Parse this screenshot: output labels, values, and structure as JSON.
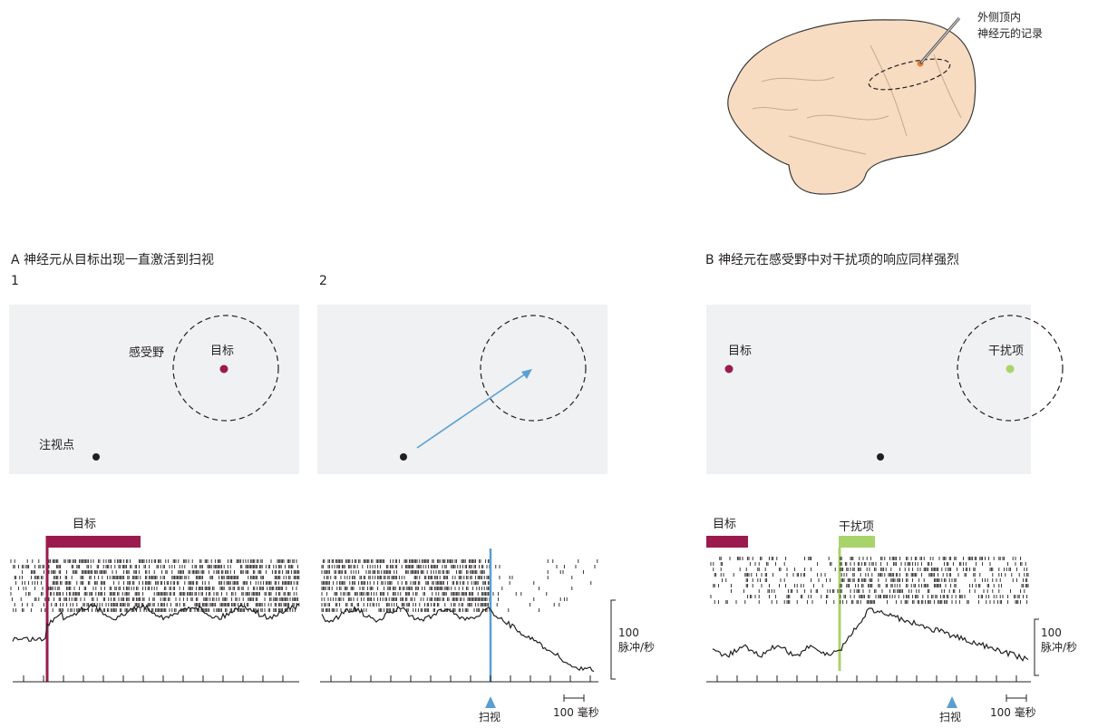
{
  "brain": {
    "label_line1": "外侧顶内",
    "label_line2": "神经元的记录"
  },
  "panel_a": {
    "title": "A  神经元从目标出现一直激活到扫视",
    "sub1": {
      "number": "1",
      "rf_label": "感受野",
      "target_label": "目标",
      "fixation_label": "注视点",
      "bar_label": "目标"
    },
    "sub2": {
      "number": "2"
    }
  },
  "panel_b": {
    "title": "B  神经元在感受野中对干扰项的响应同样强烈",
    "target_label": "目标",
    "distractor_label": "干扰项",
    "bar_target_label": "目标",
    "bar_distractor_label": "干扰项"
  },
  "scale": {
    "rate_value": "100",
    "rate_unit": "脉冲/秒",
    "time_value": "100",
    "time_unit": "毫秒",
    "saccade_label": "扫视"
  },
  "colors": {
    "target": "#9b1b4e",
    "distractor": "#a9d36b",
    "saccade": "#5a9fd4",
    "brain": "#f7dcc2",
    "brain_outline": "#3a3a3a",
    "box": "#f0f1f2"
  }
}
